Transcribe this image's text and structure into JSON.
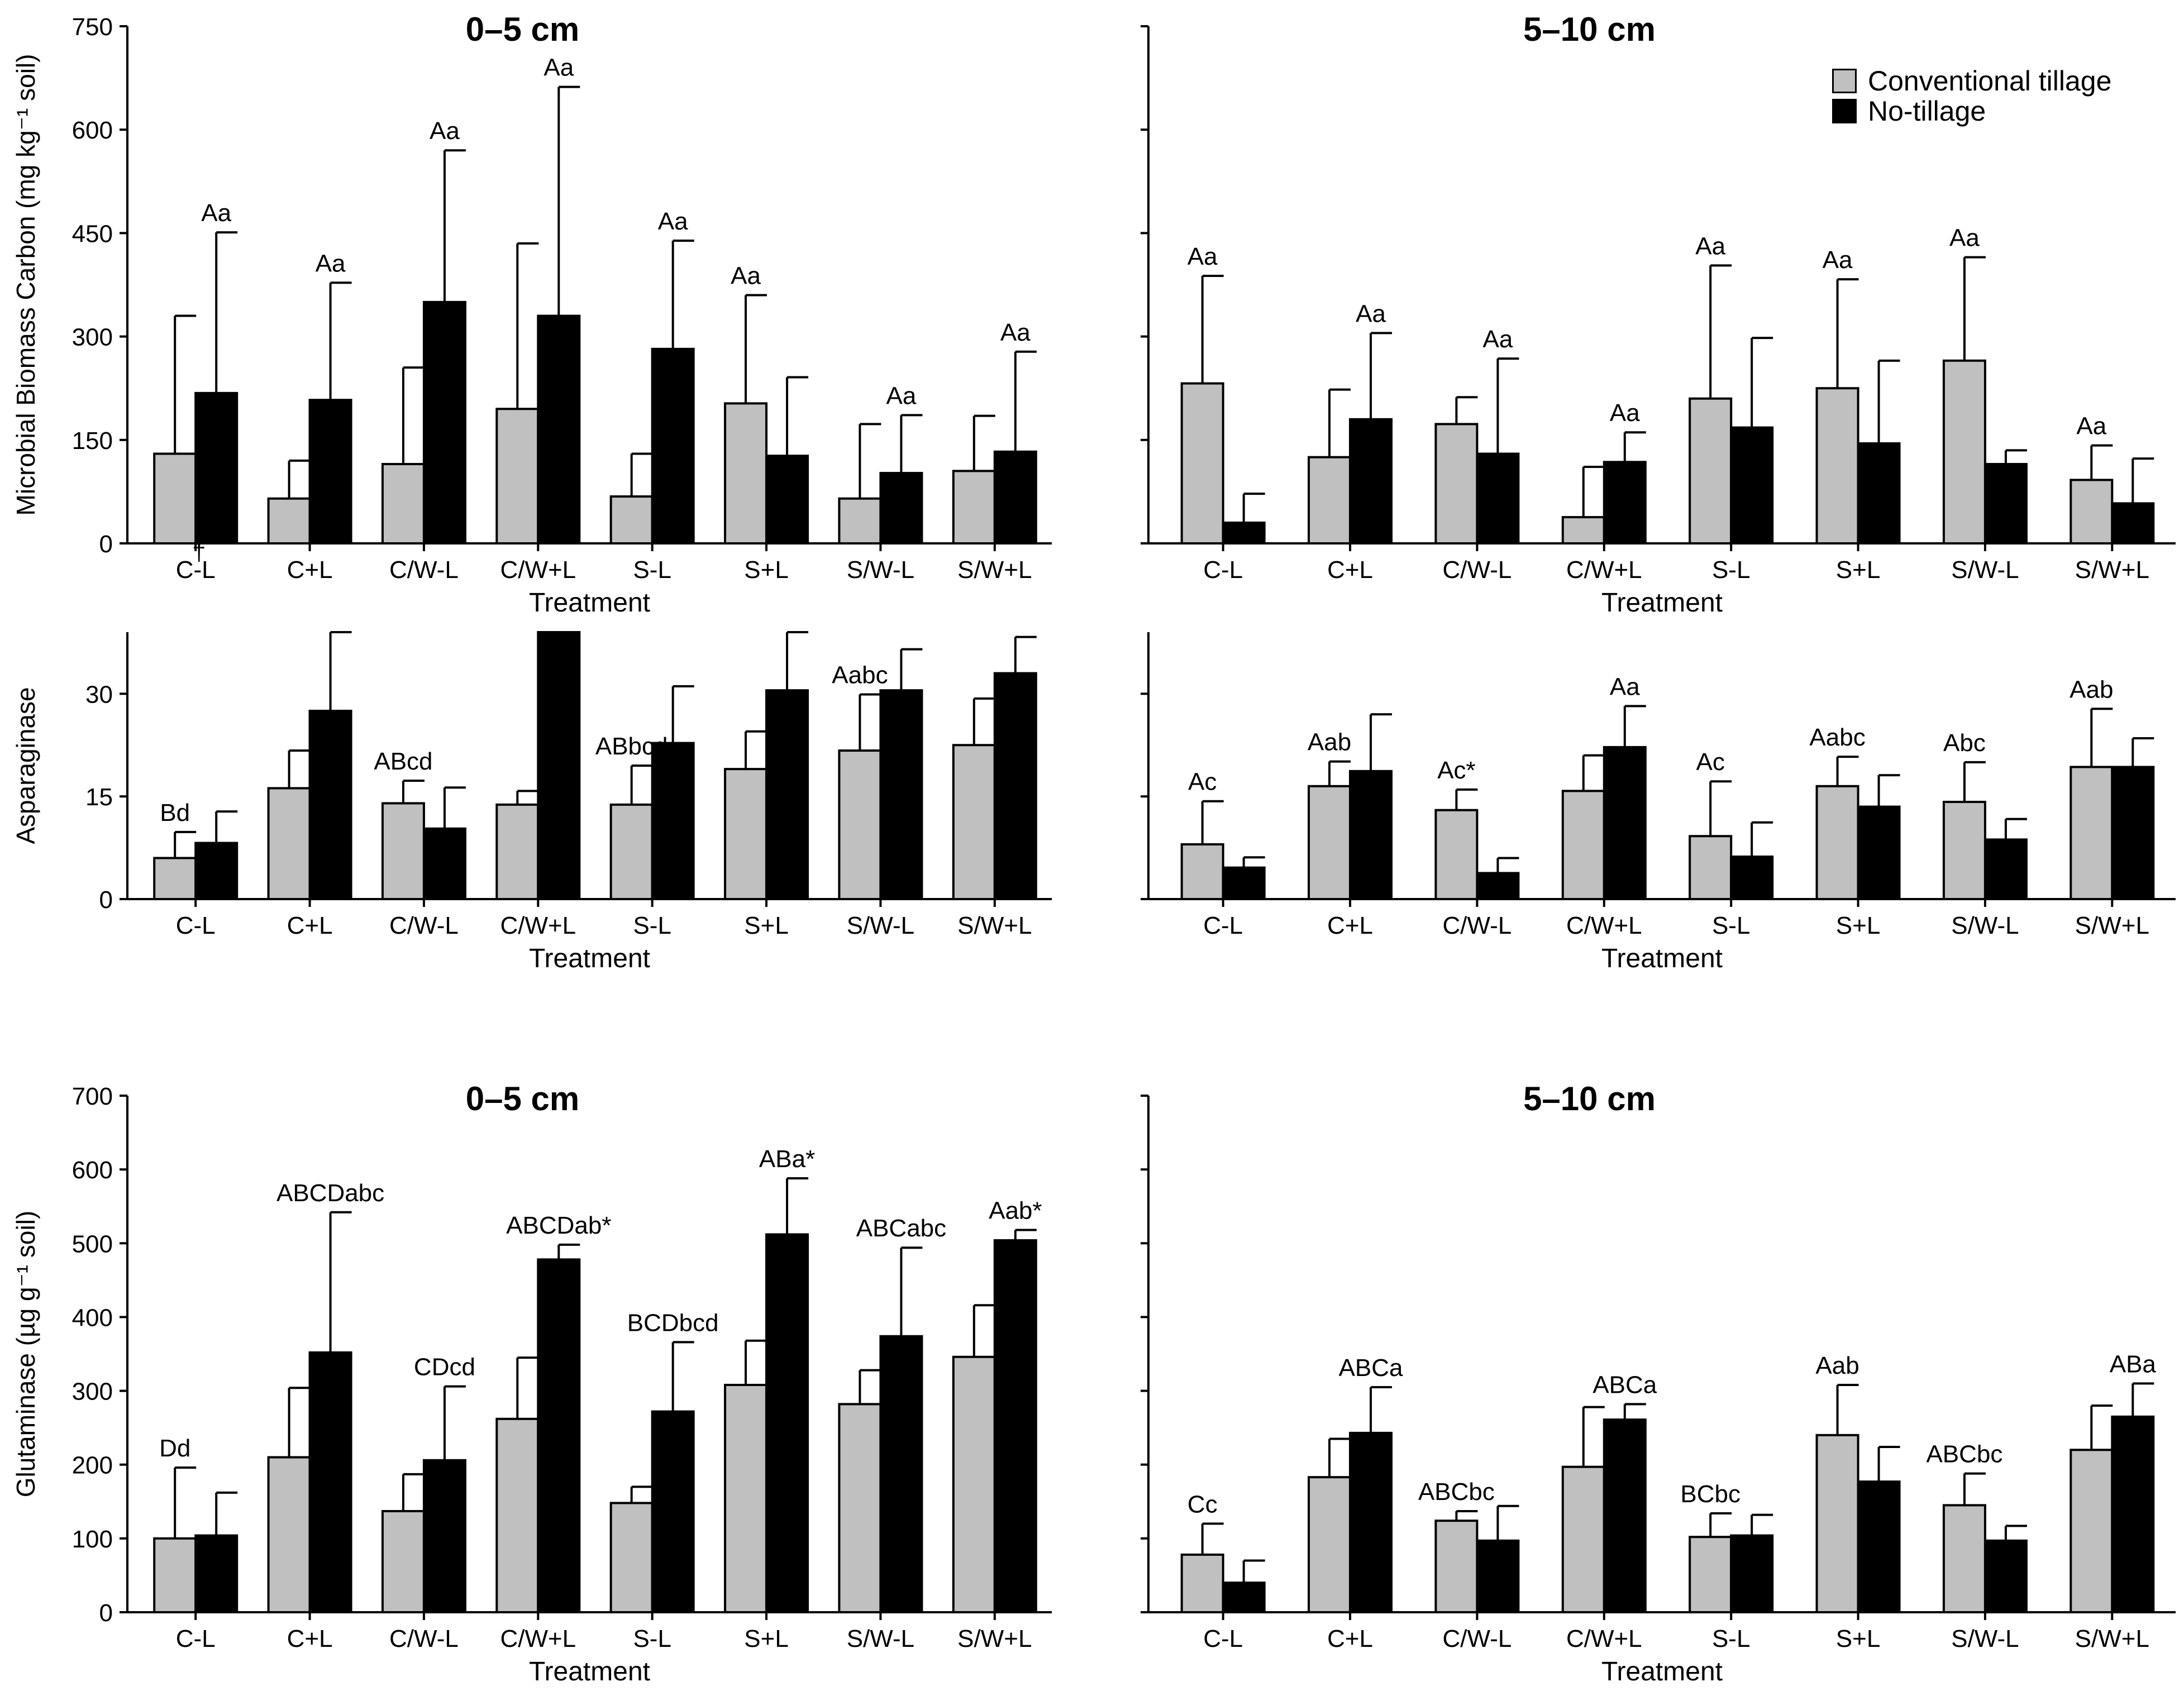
{
  "colors": {
    "conventional": "#c0c0c0",
    "no_tillage": "#000000",
    "axis": "#000000"
  },
  "legend": {
    "conventional_label": "Conventional tillage",
    "no_tillage_label": "No-tillage"
  },
  "chart_data": [
    {
      "type": "bar",
      "title": "0–5 cm",
      "xlabel": "Treatment",
      "ylabel": "Microbial Biomass Carbon (mg kg⁻¹ soil)",
      "ylim": [
        0,
        750
      ],
      "yticks": [
        0,
        150,
        300,
        450,
        600,
        750
      ],
      "categories": [
        "C-L",
        "C+L",
        "C/W-L",
        "C/W+L",
        "S-L",
        "S+L",
        "S/W-L",
        "S/W+L"
      ],
      "series": [
        {
          "name": "Conventional tillage",
          "values": [
            130,
            65,
            115,
            195,
            68,
            203,
            65,
            105
          ],
          "errors": [
            200,
            55,
            140,
            240,
            62,
            157,
            108,
            80
          ]
        },
        {
          "name": "No-tillage",
          "values": [
            218,
            208,
            350,
            330,
            282,
            127,
            102,
            133
          ],
          "errors": [
            233,
            170,
            220,
            332,
            157,
            114,
            84,
            145
          ]
        }
      ],
      "annotations": [
        "Aa",
        "Aa",
        "Aa",
        "Aa",
        "Aa",
        "Aa",
        "Aa",
        "Aa"
      ],
      "annotation_positions": [
        1,
        1,
        1,
        1,
        1,
        0,
        1,
        1
      ],
      "marker": "†"
    },
    {
      "type": "bar",
      "title": "5–10 cm",
      "xlabel": "Treatment",
      "ylabel": "",
      "ylim": [
        0,
        750
      ],
      "yticks": [
        0,
        150,
        300,
        450,
        600,
        750
      ],
      "categories": [
        "C-L",
        "C+L",
        "C/W-L",
        "C/W+L",
        "S-L",
        "S+L",
        "S/W-L",
        "S/W+L"
      ],
      "series": [
        {
          "name": "Conventional tillage",
          "values": [
            232,
            125,
            173,
            38,
            210,
            225,
            265,
            92
          ],
          "errors": [
            156,
            98,
            39,
            73,
            193,
            158,
            150,
            50
          ]
        },
        {
          "name": "No-tillage",
          "values": [
            30,
            180,
            130,
            118,
            168,
            145,
            115,
            58
          ],
          "errors": [
            42,
            125,
            138,
            43,
            130,
            120,
            20,
            65
          ]
        }
      ],
      "annotations": [
        "Aa",
        "Aa",
        "Aa",
        "Aa",
        "Aa",
        "Aa",
        "Aa",
        "Aa"
      ],
      "annotation_positions": [
        0,
        1,
        1,
        1,
        0,
        0,
        0,
        0
      ]
    },
    {
      "type": "bar",
      "title": "",
      "xlabel": "Treatment",
      "ylabel": "Asparaginase",
      "ylim": [
        0,
        39
      ],
      "yticks": [
        0,
        15,
        30
      ],
      "categories": [
        "C-L",
        "C+L",
        "C/W-L",
        "C/W+L",
        "S-L",
        "S+L",
        "S/W-L",
        "S/W+L"
      ],
      "series": [
        {
          "name": "Conventional tillage",
          "values": [
            6,
            16.2,
            14,
            13.8,
            13.8,
            19,
            21.7,
            22.5
          ],
          "errors": [
            3.8,
            5.5,
            3.3,
            2,
            5.7,
            5.5,
            8.2,
            6.8
          ]
        },
        {
          "name": "No-tillage",
          "values": [
            8.2,
            27.5,
            10.3,
            40,
            22.8,
            30.5,
            30.5,
            33
          ],
          "errors": [
            4.6,
            12,
            6,
            0,
            8.3,
            9,
            6,
            5.3
          ]
        }
      ],
      "annotations": [
        "Bd",
        "",
        "ABcd",
        "",
        "ABbcd",
        "",
        "Aabc",
        ""
      ],
      "annotation_positions": [
        0,
        0,
        0,
        0,
        0,
        0,
        0,
        0
      ]
    },
    {
      "type": "bar",
      "title": "",
      "xlabel": "Treatment",
      "ylabel": "",
      "ylim": [
        0,
        39
      ],
      "yticks": [
        0,
        15,
        30
      ],
      "categories": [
        "C-L",
        "C+L",
        "C/W-L",
        "C/W+L",
        "S-L",
        "S+L",
        "S/W-L",
        "S/W+L"
      ],
      "series": [
        {
          "name": "Conventional tillage",
          "values": [
            8,
            16.5,
            13,
            15.8,
            9.2,
            16.5,
            14.2,
            19.3
          ],
          "errors": [
            6.3,
            3.6,
            3,
            5.2,
            8,
            4.3,
            5.8,
            8.5
          ]
        },
        {
          "name": "No-tillage",
          "values": [
            4.6,
            18.7,
            3.8,
            22.2,
            6.2,
            13.5,
            8.7,
            19.3
          ],
          "errors": [
            1.5,
            8.3,
            2.2,
            6,
            5,
            4.6,
            3,
            4.2
          ]
        }
      ],
      "annotations": [
        "Ac",
        "Aab",
        "Ac*",
        "Aa",
        "Ac",
        "Aabc",
        "Abc",
        "Aab"
      ],
      "annotation_positions": [
        0,
        0,
        0,
        1,
        0,
        0,
        0,
        0
      ]
    },
    {
      "type": "bar",
      "title": "0–5 cm",
      "xlabel": "Treatment",
      "ylabel": "Glutaminase (µg g⁻¹ soil)",
      "ylim": [
        0,
        700
      ],
      "yticks": [
        0,
        100,
        200,
        300,
        400,
        500,
        600,
        700
      ],
      "categories": [
        "C-L",
        "C+L",
        "C/W-L",
        "C/W+L",
        "S-L",
        "S+L",
        "S/W-L",
        "S/W+L"
      ],
      "series": [
        {
          "name": "Conventional tillage",
          "values": [
            100,
            210,
            137,
            262,
            148,
            308,
            282,
            346
          ],
          "errors": [
            96,
            94,
            50,
            83,
            22,
            60,
            46,
            70
          ]
        },
        {
          "name": "No-tillage",
          "values": [
            104,
            352,
            206,
            478,
            272,
            512,
            374,
            504
          ],
          "errors": [
            58,
            190,
            100,
            20,
            94,
            76,
            120,
            14
          ]
        }
      ],
      "annotations": [
        "Dd",
        "ABCDabc",
        "CDcd",
        "ABCDab*",
        "BCDbcd",
        "ABa*",
        "ABCabc",
        "Aab*"
      ],
      "annotation_positions": [
        0,
        1,
        1,
        1,
        1,
        1,
        1,
        1
      ]
    },
    {
      "type": "bar",
      "title": "5–10 cm",
      "xlabel": "Treatment",
      "ylabel": "",
      "ylim": [
        0,
        700
      ],
      "yticks": [
        0,
        100,
        200,
        300,
        400,
        500,
        600,
        700
      ],
      "categories": [
        "C-L",
        "C+L",
        "C/W-L",
        "C/W+L",
        "S-L",
        "S+L",
        "S/W-L",
        "S/W+L"
      ],
      "series": [
        {
          "name": "Conventional tillage",
          "values": [
            78,
            183,
            124,
            197,
            102,
            240,
            145,
            220
          ],
          "errors": [
            42,
            52,
            13,
            81,
            32,
            68,
            43,
            60
          ]
        },
        {
          "name": "No-tillage",
          "values": [
            40,
            243,
            97,
            261,
            104,
            177,
            97,
            265
          ],
          "errors": [
            30,
            62,
            47,
            21,
            28,
            47,
            20,
            45
          ]
        }
      ],
      "annotations": [
        "Cc",
        "ABCa",
        "ABCbc",
        "ABCa",
        "BCbc",
        "Aab",
        "ABCbc",
        "ABa"
      ],
      "annotation_positions": [
        0,
        1,
        0,
        1,
        0,
        0,
        0,
        1
      ]
    }
  ]
}
